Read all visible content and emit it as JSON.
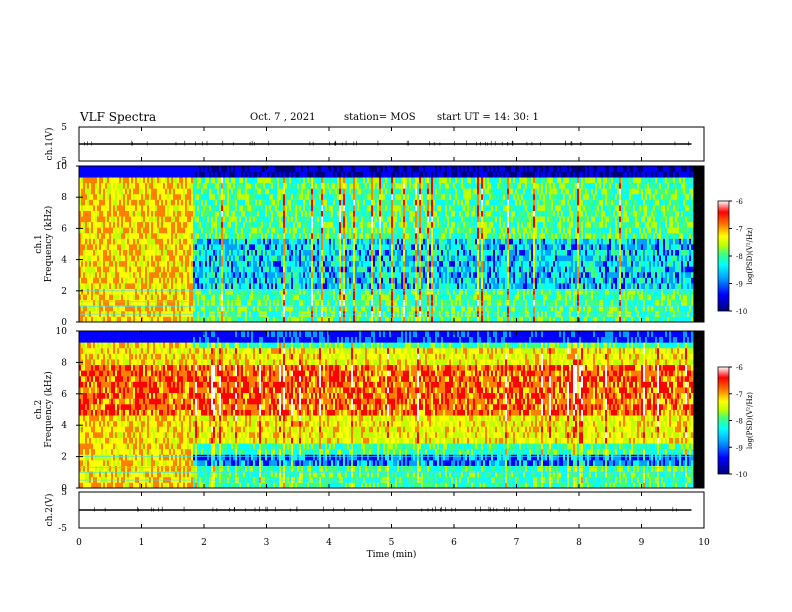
{
  "header": {
    "title": "VLF Spectra",
    "date": "Oct. 7 , 2021",
    "station": "station= MOS",
    "start": "start UT = 14: 30: 1"
  },
  "colors": {
    "spectrogram": [
      "#00007a",
      "#0000ff",
      "#00a0ff",
      "#00ffff",
      "#40ff80",
      "#c0ff00",
      "#ffff00",
      "#ff8000",
      "#ff0000",
      "#ffffff"
    ]
  },
  "chart_data": [
    {
      "type": "line",
      "panel": "ch.1 waveform",
      "ylabel": "ch.1(V)",
      "ylim": [
        -5,
        5
      ],
      "yticks": [
        "5",
        "-5"
      ],
      "series": [
        {
          "x": [
            0,
            9.8
          ],
          "values": [
            0,
            0
          ]
        }
      ]
    },
    {
      "type": "heatmap",
      "panel": "ch.1 spectrogram",
      "ylabel_line1": "ch.1",
      "ylabel_line2": "Frequency (kHz)",
      "xlim": [
        0,
        10
      ],
      "ylim": [
        0,
        10
      ],
      "yticks": [
        "0",
        "2",
        "4",
        "6",
        "8",
        "10"
      ],
      "data_end_min": 9.8,
      "broadband_segment_min": [
        0,
        1.8
      ],
      "colorbar": {
        "label": "log(PSD)(V²/Hz)",
        "range": [
          -10,
          -6
        ],
        "ticks": [
          "-6",
          "-7",
          "-8",
          "-9",
          "-10"
        ]
      }
    },
    {
      "type": "heatmap",
      "panel": "ch.2 spectrogram",
      "ylabel_line1": "ch.2",
      "ylabel_line2": "Frequency (kHz)",
      "xlim": [
        0,
        10
      ],
      "ylim": [
        0,
        10
      ],
      "yticks": [
        "0",
        "2",
        "4",
        "6",
        "8",
        "10"
      ],
      "data_end_min": 9.8,
      "broadband_segment_min": [
        0,
        1.8
      ],
      "colorbar": {
        "label": "log(PSD)(V²/Hz)",
        "range": [
          -10,
          -6
        ],
        "ticks": [
          "-6",
          "-7",
          "-8",
          "-9",
          "-10"
        ]
      }
    },
    {
      "type": "line",
      "panel": "ch.2 waveform",
      "ylabel": "ch.2(V)",
      "ylim": [
        -5,
        5
      ],
      "yticks": [
        "5",
        "-5"
      ],
      "xlabel": "Time (min)",
      "xlim": [
        0,
        10
      ],
      "xticks": [
        "0",
        "1",
        "2",
        "3",
        "4",
        "5",
        "6",
        "7",
        "8",
        "9",
        "10"
      ],
      "series": [
        {
          "x": [
            0,
            9.8
          ],
          "values": [
            0,
            0
          ]
        }
      ]
    }
  ]
}
